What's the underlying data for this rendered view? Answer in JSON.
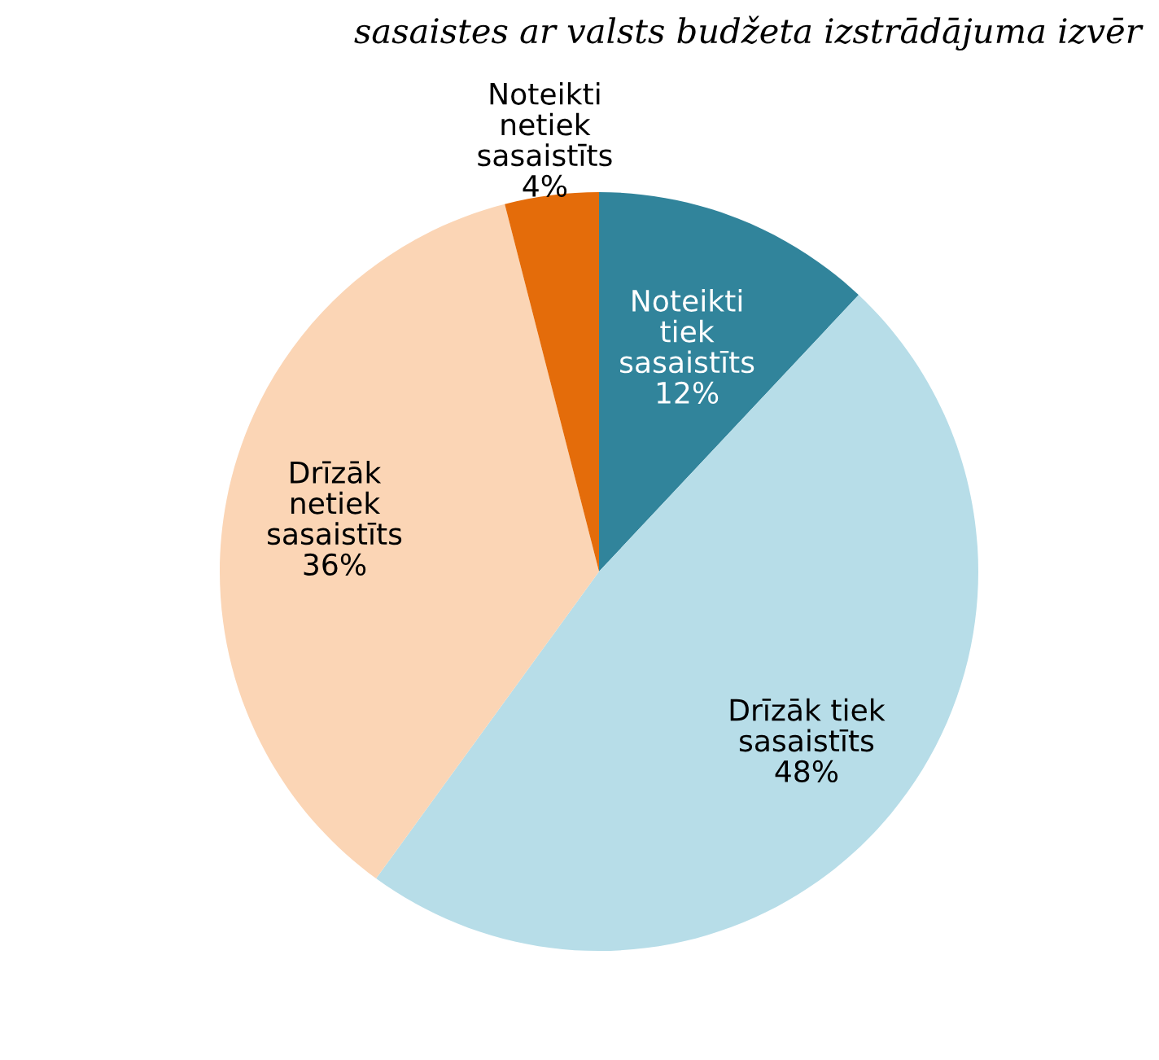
{
  "chart_data": {
    "type": "pie",
    "title": "sasaistes ar valsts budžeta izstrādājuma izvēr",
    "categories": [
      "Noteikti\ntiek\nsasaistīts",
      "Drīzāk tiek\nsasaistīts",
      "Drīzāk\nnetiek\nsasaistīts",
      "Noteikti\nnetiek\nsasaistīts"
    ],
    "values": [
      12,
      48,
      36,
      4
    ],
    "value_labels": [
      "12%",
      "48%",
      "36%",
      "4%"
    ],
    "colors": [
      "#31849b",
      "#b7dde8",
      "#fbd5b5",
      "#e46c0a"
    ],
    "legend": false
  }
}
